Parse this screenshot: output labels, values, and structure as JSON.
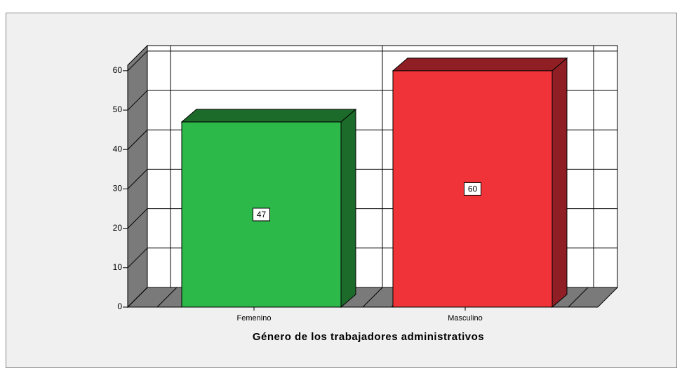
{
  "chart_data": {
    "type": "bar3d",
    "x_label": "Género de los trabajadores administrativos",
    "categories": [
      "Femenino",
      "Masculino"
    ],
    "values": [
      47,
      60
    ],
    "colors": [
      "#2db84a",
      "#f03339"
    ],
    "side_colors": [
      "#1d6b2b",
      "#8f1f24"
    ],
    "ylim": [
      0,
      61.4
    ],
    "yticks": [
      0,
      10,
      20,
      30,
      40,
      50,
      60
    ],
    "grid": true
  }
}
